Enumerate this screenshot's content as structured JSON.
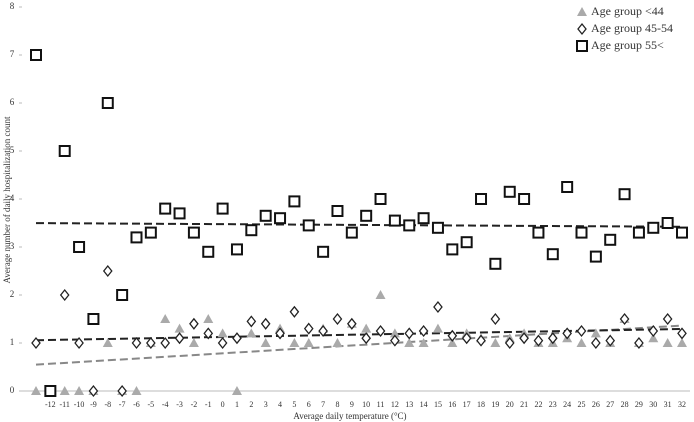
{
  "chart_data": {
    "type": "scatter",
    "y_label": "Average number of daily hospitalization count",
    "x_label": "Average daily temperature (°C)",
    "categories": [
      null,
      "-12",
      "-11",
      "-10",
      "-9",
      "-8",
      "-7",
      "-6",
      "-5",
      "-4",
      "-3",
      "-2",
      "-1",
      "0",
      "1",
      "2",
      "3",
      "4",
      "5",
      "6",
      "7",
      "8",
      "9",
      "10",
      "11",
      "12",
      "13",
      "14",
      "15",
      "16",
      "17",
      "18",
      "19",
      "20",
      "21",
      "22",
      "23",
      "24",
      "25",
      "26",
      "27",
      "28",
      "29",
      "30",
      "31",
      "32"
    ],
    "series": [
      {
        "name": "Age group <44",
        "color": "#aaaaaa",
        "marker": "triangle",
        "values": [
          0,
          0,
          0,
          0,
          0,
          1,
          0,
          0,
          1,
          1.5,
          1.3,
          1,
          1.5,
          1.2,
          0,
          1.2,
          1,
          1.3,
          1,
          1,
          1.3,
          1,
          1.4,
          1.3,
          2,
          1.2,
          1,
          1,
          1.3,
          1,
          1.2,
          1.1,
          1,
          1.1,
          1.2,
          1,
          1,
          1.1,
          1,
          1.2,
          1,
          1.5,
          1,
          1.1,
          1,
          1
        ]
      },
      {
        "name": "Age group 45-54",
        "color": "#222222",
        "marker": "diamond",
        "values": [
          1,
          0,
          2,
          1,
          0,
          2.5,
          0,
          1,
          1,
          1,
          1.1,
          1.4,
          1.2,
          1,
          1.1,
          1.45,
          1.4,
          1.2,
          1.65,
          1.3,
          1.25,
          1.5,
          1.4,
          1.1,
          1.25,
          1.05,
          1.2,
          1.25,
          1.75,
          1.15,
          1.1,
          1.05,
          1.5,
          1.0,
          1.1,
          1.05,
          1.1,
          1.2,
          1.25,
          1.0,
          1.05,
          1.5,
          1.0,
          1.25,
          1.5,
          1.2
        ]
      },
      {
        "name": "Age group 55<",
        "color": "#111111",
        "marker": "square",
        "values": [
          7,
          0,
          5,
          3,
          1.5,
          6,
          2,
          3.2,
          3.3,
          3.8,
          3.7,
          3.3,
          2.9,
          3.8,
          2.95,
          3.35,
          3.65,
          3.6,
          3.95,
          3.45,
          2.9,
          3.75,
          3.3,
          3.65,
          4.0,
          3.55,
          3.45,
          3.6,
          3.4,
          2.95,
          3.1,
          4.0,
          2.65,
          4.15,
          4.0,
          3.3,
          2.85,
          4.25,
          3.3,
          2.8,
          3.15,
          4.1,
          3.3,
          3.4,
          3.5,
          3.3
        ]
      }
    ],
    "ylim": [
      0,
      8
    ],
    "yticks": [
      0,
      1,
      2,
      3,
      4,
      5,
      6,
      7,
      8
    ],
    "trendline": true,
    "legend": "top-right"
  }
}
